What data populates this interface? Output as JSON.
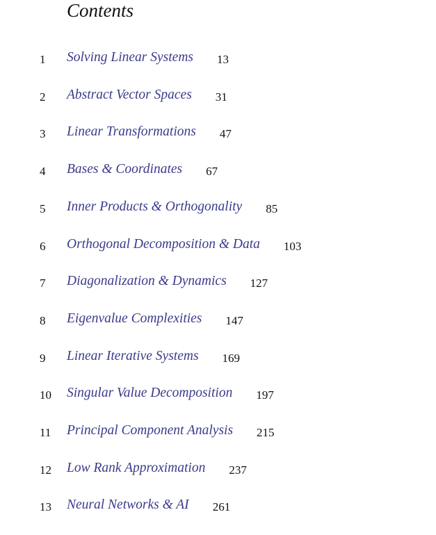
{
  "title": "Contents",
  "entries": [
    {
      "number": "1",
      "title": "Solving Linear Systems",
      "page": "13"
    },
    {
      "number": "2",
      "title": "Abstract Vector Spaces",
      "page": "31"
    },
    {
      "number": "3",
      "title": "Linear Transformations",
      "page": "47"
    },
    {
      "number": "4",
      "title": "Bases & Coordinates",
      "page": "67"
    },
    {
      "number": "5",
      "title": "Inner Products & Orthogonality",
      "page": "85"
    },
    {
      "number": "6",
      "title": "Orthogonal Decomposition & Data",
      "page": "103"
    },
    {
      "number": "7",
      "title": "Diagonalization & Dynamics",
      "page": "127"
    },
    {
      "number": "8",
      "title": "Eigenvalue Complexities",
      "page": "147"
    },
    {
      "number": "9",
      "title": "Linear Iterative Systems",
      "page": "169"
    },
    {
      "number": "10",
      "title": "Singular Value Decomposition",
      "page": "197"
    },
    {
      "number": "11",
      "title": "Principal Component Analysis",
      "page": "215"
    },
    {
      "number": "12",
      "title": "Low Rank Approximation",
      "page": "237"
    },
    {
      "number": "13",
      "title": "Neural Networks & AI",
      "page": "261"
    }
  ],
  "colors": {
    "link": "#3b3b8c",
    "text": "#111111"
  }
}
